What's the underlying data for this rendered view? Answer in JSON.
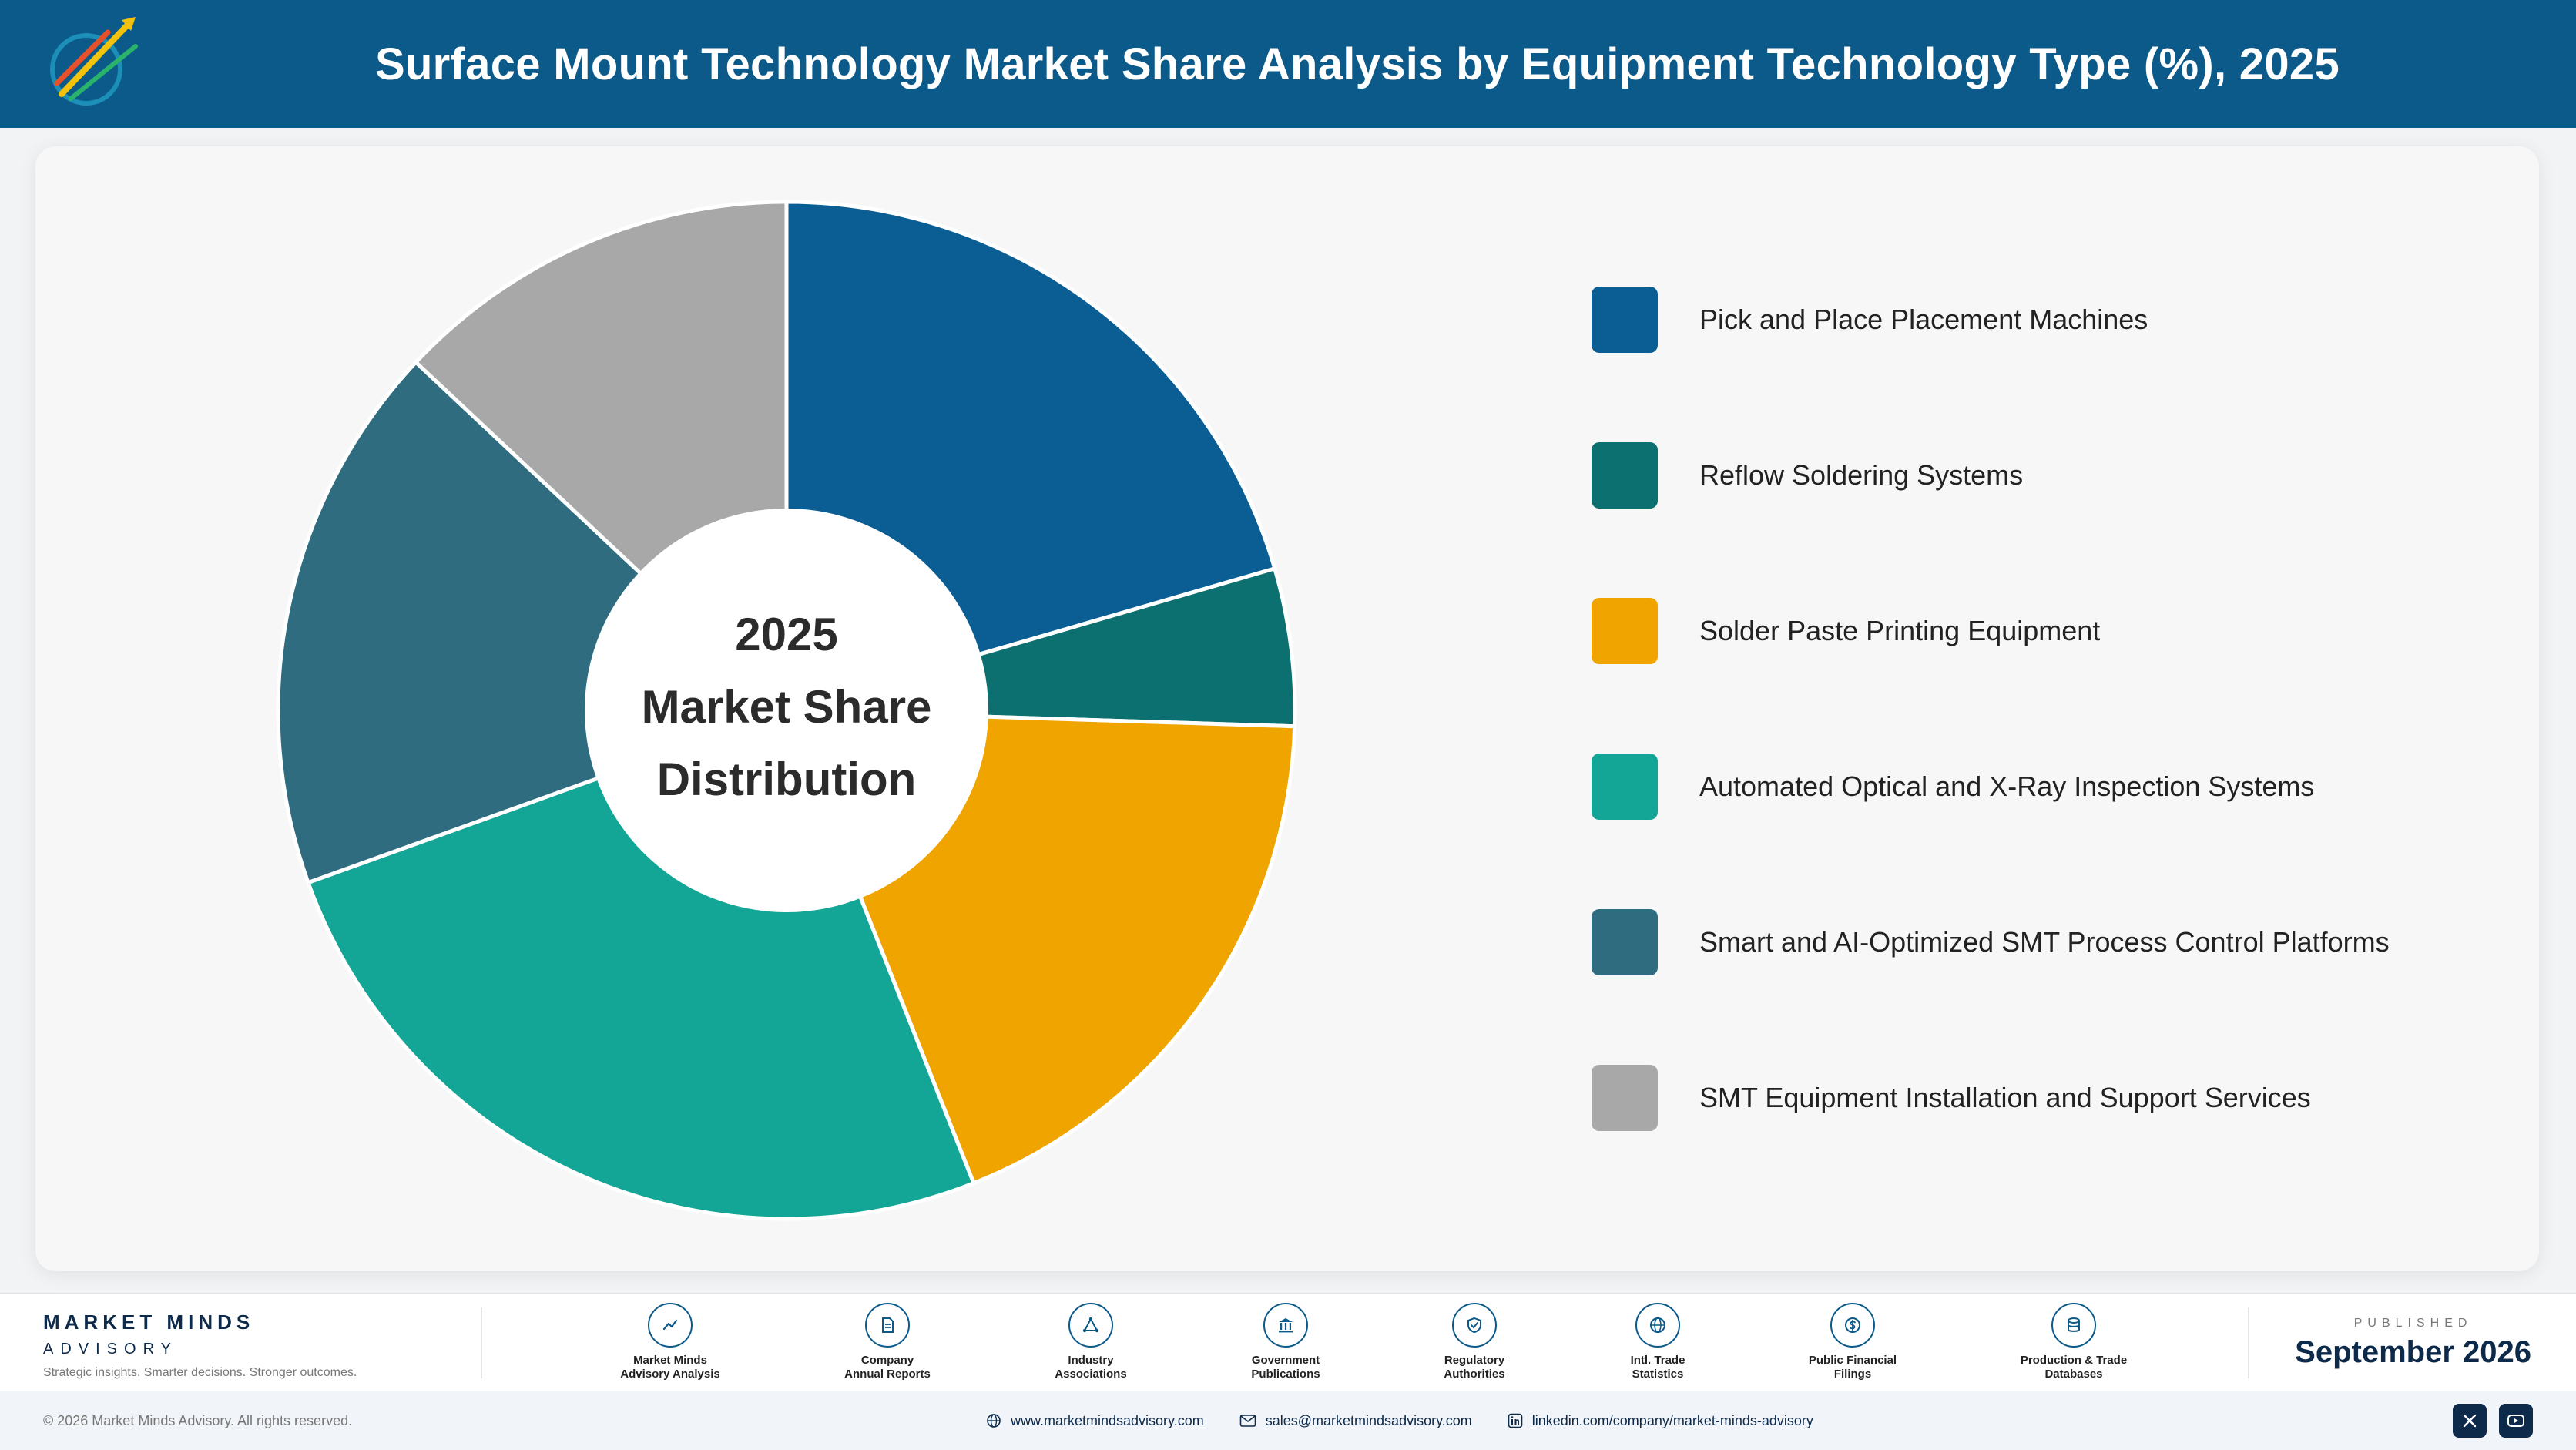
{
  "header": {
    "title": "Surface Mount Technology Market Share Analysis by Equipment Technology Type (%), 2025",
    "logo_icon": "market-minds-logo"
  },
  "chart_data": {
    "type": "pie",
    "title": "Surface Mount Technology Market Share Analysis by Equipment Technology Type (%), 2025",
    "center_label": [
      "2025",
      "Market Share",
      "Distribution"
    ],
    "categories": [
      "Pick and Place Placement Machines",
      "Reflow Soldering Systems",
      "Solder Paste Printing Equipment",
      "Automated Optical and X-Ray Inspection Systems",
      "Smart and AI-Optimized SMT Process Control Platforms",
      "SMT Equipment Installation and Support Services"
    ],
    "values": [
      20.5,
      5.0,
      18.5,
      25.5,
      17.5,
      13.0
    ],
    "colors": [
      "#0a5e94",
      "#0d7070",
      "#f0a400",
      "#13a595",
      "#2f6c80",
      "#a8a8a8"
    ],
    "legend_position": "right",
    "start_angle_deg": 0,
    "direction": "clockwise"
  },
  "footer": {
    "brand_name": "MARKET MINDS",
    "brand_sub": "ADVISORY",
    "tagline": "Strategic insights. Smarter decisions. Stronger outcomes.",
    "sources": [
      {
        "line1": "Market Minds",
        "line2": "Advisory Analysis",
        "icon": "chart-line-icon"
      },
      {
        "line1": "Company",
        "line2": "Annual Reports",
        "icon": "document-icon"
      },
      {
        "line1": "Industry",
        "line2": "Associations",
        "icon": "network-icon"
      },
      {
        "line1": "Government",
        "line2": "Publications",
        "icon": "government-building-icon"
      },
      {
        "line1": "Regulatory",
        "line2": "Authorities",
        "icon": "shield-check-icon"
      },
      {
        "line1": "Intl. Trade",
        "line2": "Statistics",
        "icon": "globe-icon"
      },
      {
        "line1": "Public Financial",
        "line2": "Filings",
        "icon": "dollar-coin-icon"
      },
      {
        "line1": "Production & Trade",
        "line2": "Databases",
        "icon": "database-icon"
      }
    ],
    "published_label": "PUBLISHED",
    "published_date": "September 2026"
  },
  "bottom_bar": {
    "copyright": "© 2026 Market Minds Advisory. All rights reserved.",
    "website": "www.marketmindsadvisory.com",
    "email": "sales@marketmindsadvisory.com",
    "linkedin": "linkedin.com/company/market-minds-advisory",
    "social": [
      "x-icon",
      "youtube-icon"
    ]
  }
}
